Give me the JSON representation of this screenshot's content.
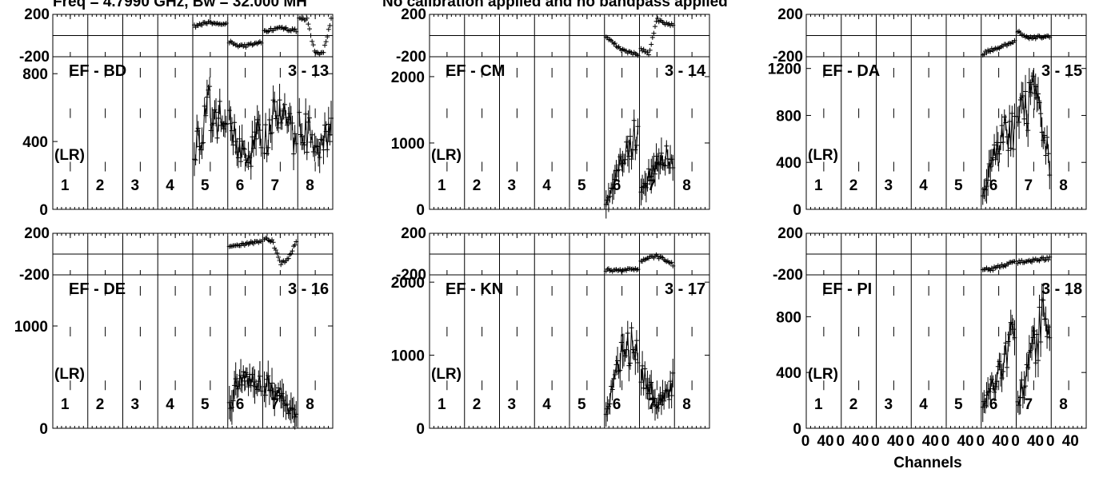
{
  "header": {
    "left": "Freq = 4.7990 GHz, Bw = 32.000 MH",
    "right": "No calibration applied and no bandpass applied"
  },
  "colors": {
    "data": "#000000",
    "axes": "#000000",
    "background": "#ffffff"
  },
  "chart_data": {
    "type": "scatter",
    "description_layout": "2 rows x 3 columns of baseline panels; each has a phase strip and an amplitude plot",
    "x_axis": {
      "label": "Channels",
      "if_count": 8,
      "tick_labels": [
        "0",
        "40",
        "0",
        "40",
        "0",
        "40",
        "0",
        "40",
        "0",
        "40",
        "0",
        "40",
        "0",
        "40",
        "0",
        "40"
      ]
    },
    "polarization_label": "(LR)",
    "if_labels": [
      "1",
      "2",
      "3",
      "4",
      "5",
      "6",
      "7",
      "8"
    ],
    "phase_axis": {
      "ylim": [
        -200,
        200
      ],
      "tick_labels": [
        "200",
        "-200"
      ]
    },
    "panels": [
      {
        "baseline": "EF - BD",
        "id": "3 - 13",
        "amp_ylim": [
          0,
          900
        ],
        "amp_ticks": [
          "800",
          "400",
          "0"
        ],
        "amp_tick_values": [
          800,
          400,
          0
        ],
        "ifs_with_data": [
          5,
          6,
          7,
          8
        ],
        "amp_by_if": {
          "5": [
            380,
            450,
            600,
            520,
            480
          ],
          "6": [
            480,
            420,
            300,
            360,
            500
          ],
          "7": [
            380,
            520,
            540,
            470,
            440
          ],
          "8": [
            560,
            450,
            380,
            420,
            470
          ]
        },
        "phase_by_if": {
          "5": [
            90,
            110,
            120,
            115,
            120
          ],
          "6": [
            -60,
            -90,
            -100,
            -80,
            -60
          ],
          "7": [
            40,
            60,
            70,
            60,
            50
          ],
          "8": [
            160,
            150,
            -170,
            -160,
            150
          ]
        }
      },
      {
        "baseline": "EF - CM",
        "id": "3 - 14",
        "amp_ylim": [
          0,
          2300
        ],
        "amp_ticks": [
          "2000",
          "1000",
          "0"
        ],
        "amp_tick_values": [
          2000,
          1000,
          0
        ],
        "ifs_with_data": [
          6,
          7
        ],
        "amp_by_if": {
          "6": [
            100,
            400,
            700,
            900,
            1200
          ],
          "7": [
            350,
            500,
            650,
            750,
            800
          ]
        },
        "phase_by_if": {
          "6": [
            -20,
            -80,
            -130,
            -160,
            -180
          ],
          "7": [
            -130,
            -170,
            150,
            120,
            100
          ]
        }
      },
      {
        "baseline": "EF - DA",
        "id": "3 - 15",
        "amp_ylim": [
          0,
          1300
        ],
        "amp_ticks": [
          "1200",
          "800",
          "400",
          "0"
        ],
        "amp_tick_values": [
          1200,
          800,
          400,
          0
        ],
        "ifs_with_data": [
          6,
          7
        ],
        "amp_by_if": {
          "6": [
            150,
            350,
            550,
            700,
            650
          ],
          "7": [
            700,
            850,
            900,
            700,
            400
          ]
        },
        "phase_by_if": {
          "6": [
            -170,
            -140,
            -110,
            -90,
            -60
          ],
          "7": [
            40,
            -10,
            -20,
            -10,
            -20
          ]
        }
      },
      {
        "baseline": "EF - DE",
        "id": "3 - 16",
        "amp_ylim": [
          0,
          1500
        ],
        "amp_ticks": [
          "1000",
          "0"
        ],
        "amp_tick_values": [
          1000,
          0
        ],
        "ifs_with_data": [
          6,
          7
        ],
        "amp_by_if": {
          "6": [
            200,
            450,
            550,
            500,
            450
          ],
          "7": [
            450,
            400,
            300,
            200,
            120
          ]
        },
        "phase_by_if": {
          "6": [
            70,
            90,
            100,
            110,
            120
          ],
          "7": [
            150,
            130,
            -90,
            -50,
            120
          ]
        }
      },
      {
        "baseline": "EF - KN",
        "id": "3 - 17",
        "amp_ylim": [
          0,
          2100
        ],
        "amp_ticks": [
          "2000",
          "1000",
          "0"
        ],
        "amp_tick_values": [
          2000,
          1000,
          0
        ],
        "ifs_with_data": [
          6,
          7
        ],
        "amp_by_if": {
          "6": [
            200,
            600,
            1000,
            1200,
            900
          ],
          "7": [
            700,
            600,
            350,
            450,
            600
          ]
        },
        "phase_by_if": {
          "6": [
            -150,
            -160,
            -150,
            -140,
            -150
          ],
          "7": [
            -60,
            -30,
            -20,
            -60,
            -100
          ]
        }
      },
      {
        "baseline": "EF - PI",
        "id": "3 - 18",
        "amp_ylim": [
          0,
          1100
        ],
        "amp_ticks": [
          "800",
          "400",
          "0"
        ],
        "amp_tick_values": [
          800,
          400,
          0
        ],
        "ifs_with_data": [
          6,
          7
        ],
        "amp_by_if": {
          "6": [
            150,
            300,
            400,
            600,
            650
          ],
          "7": [
            200,
            350,
            550,
            750,
            850
          ]
        },
        "phase_by_if": {
          "6": [
            -140,
            -150,
            -120,
            -100,
            -80
          ],
          "7": [
            -80,
            -70,
            -60,
            -50,
            -40
          ]
        }
      }
    ]
  }
}
